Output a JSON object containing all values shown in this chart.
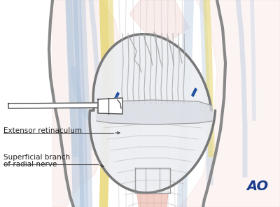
{
  "bg_color": "#ffffff",
  "ao_text": "AO",
  "ao_color": "#1a3a8c",
  "ao_fontsize": 14,
  "label1": "Extensor retinaculum",
  "label2_line1": "Superficial branch",
  "label2_line2": "of radial nerve",
  "label_color": "#222222",
  "label_fontsize": 7.5,
  "eye_fill": "#e8eaf0",
  "eye_outline": "#777777",
  "blue_pin_color": "#1a4a9c",
  "yellow_nerve": "#e8d878",
  "blue_vessel": "#b0c4dc",
  "pink_muscle": "#e8b8b0",
  "gray_skin": "#888888",
  "retractor_fill": "#ffffff",
  "retractor_line": "#444444"
}
